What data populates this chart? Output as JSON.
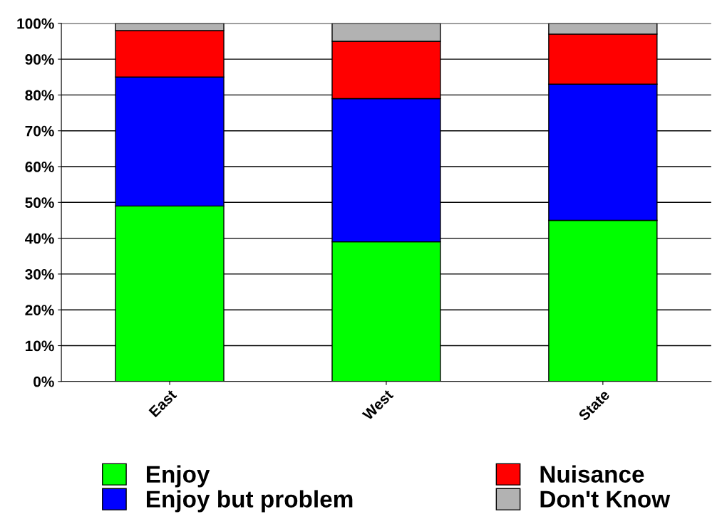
{
  "chart_data": {
    "type": "bar",
    "stacked": true,
    "categories": [
      "East",
      "West",
      "State"
    ],
    "series": [
      {
        "name": "Enjoy",
        "color": "#00ff00",
        "values": [
          49,
          39,
          45
        ]
      },
      {
        "name": "Enjoy but problem",
        "color": "#0000ff",
        "values": [
          36,
          40,
          38
        ]
      },
      {
        "name": "Nuisance",
        "color": "#ff0000",
        "values": [
          13,
          16,
          14
        ]
      },
      {
        "name": "Don't Know",
        "color": "#b2b2b2",
        "values": [
          2,
          5,
          3
        ]
      }
    ],
    "ylim": [
      0,
      100
    ],
    "yticks": [
      {
        "value": 0,
        "label": "0%"
      },
      {
        "value": 10,
        "label": "10%"
      },
      {
        "value": 20,
        "label": "20%"
      },
      {
        "value": 30,
        "label": "30%"
      },
      {
        "value": 40,
        "label": "40%"
      },
      {
        "value": 50,
        "label": "50%"
      },
      {
        "value": 60,
        "label": "60%"
      },
      {
        "value": 70,
        "label": "70%"
      },
      {
        "value": 80,
        "label": "80%"
      },
      {
        "value": 90,
        "label": "90%"
      },
      {
        "value": 100,
        "label": "100%"
      }
    ],
    "grid": "y",
    "legend": "bottom"
  }
}
